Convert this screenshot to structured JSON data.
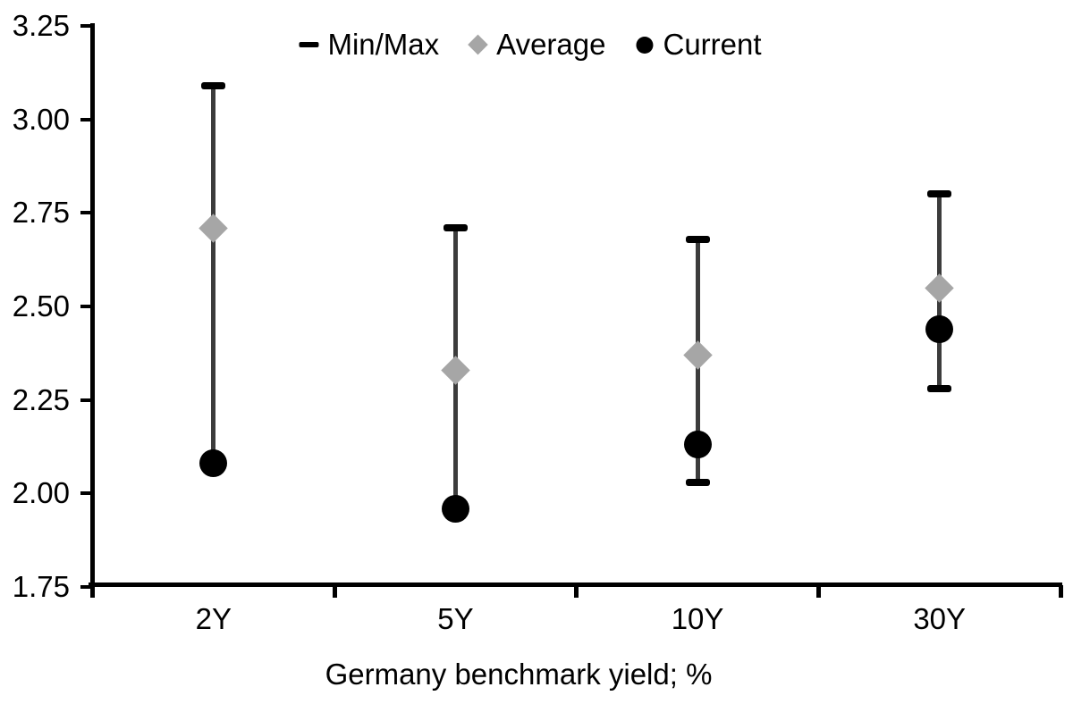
{
  "chart_data": {
    "type": "scatter",
    "subtype": "min-max-range-dot-plot",
    "title": "",
    "xlabel": "Germany benchmark yield; %",
    "ylabel": "",
    "categories": [
      "2Y",
      "5Y",
      "10Y",
      "30Y"
    ],
    "series": [
      {
        "name": "Min/Max",
        "marker": "dash",
        "color": "#000000",
        "min": [
          2.08,
          1.96,
          2.03,
          2.28
        ],
        "max": [
          3.09,
          2.71,
          2.68,
          2.8
        ]
      },
      {
        "name": "Average",
        "marker": "diamond",
        "color": "#a6a6a6",
        "values": [
          2.71,
          2.33,
          2.37,
          2.55
        ]
      },
      {
        "name": "Current",
        "marker": "circle",
        "color": "#000000",
        "values": [
          2.08,
          1.96,
          2.13,
          2.44
        ]
      }
    ],
    "ylim": [
      1.75,
      3.25
    ],
    "ytick_step": 0.25,
    "yticks": [
      "3.25",
      "3.00",
      "2.75",
      "2.50",
      "2.25",
      "2.00",
      "1.75"
    ],
    "legend_position": "top-center",
    "grid": false,
    "colors": {
      "whisker": "#3c3c3c",
      "cap": "#000000",
      "average": "#a6a6a6",
      "current": "#000000",
      "axis": "#000000",
      "text": "#000000",
      "background": "#ffffff"
    }
  }
}
